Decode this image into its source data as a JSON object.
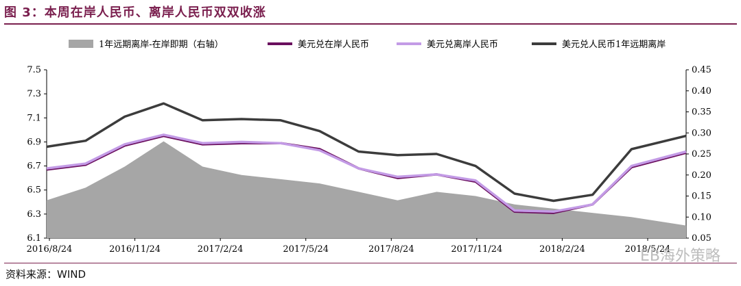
{
  "figure": {
    "title": "图 3：本周在岸人民币、离岸人民币双双收涨",
    "source": "资料来源：WIND",
    "watermark": "EB海外策略"
  },
  "colors": {
    "title": "#7a1f4e",
    "spread_area": "#a6a6a6",
    "onshore": "#6a0f5e",
    "offshore": "#c39be6",
    "forward": "#3c3c3c"
  },
  "chart_data": {
    "type": "line",
    "x_tick_labels": [
      "2016/8/24",
      "2016/11/24",
      "2017/2/24",
      "2017/5/24",
      "2017/8/24",
      "2017/11/24",
      "2018/2/24",
      "2018/5/24"
    ],
    "y_left": {
      "range": [
        6.1,
        7.5
      ],
      "ticks": [
        "6.1",
        "6.3",
        "6.5",
        "6.7",
        "6.9",
        "7.1",
        "7.3",
        "7.5"
      ]
    },
    "y_right": {
      "range": [
        0.05,
        0.45
      ],
      "ticks": [
        "0.05",
        "0.10",
        "0.15",
        "0.20",
        "0.25",
        "0.30",
        "0.35",
        "0.40",
        "0.45"
      ]
    },
    "legend": [
      "1年远期离岸-在岸即期（右轴）",
      "美元兑在岸人民币",
      "美元兑离岸人民币",
      "美元兑人民币1年远期离岸"
    ],
    "x": [
      0,
      0.5,
      1,
      1.5,
      2,
      2.5,
      3,
      3.5,
      4,
      4.5,
      5,
      5.5,
      6,
      6.5,
      7,
      7.5,
      8.2
    ],
    "series": [
      {
        "name": "1年远期离岸-在岸即期（右轴）",
        "axis": "right",
        "kind": "area",
        "values": [
          0.14,
          0.17,
          0.22,
          0.28,
          0.22,
          0.2,
          0.19,
          0.18,
          0.16,
          0.14,
          0.16,
          0.15,
          0.13,
          0.12,
          0.11,
          0.1,
          0.08
        ]
      },
      {
        "name": "美元兑在岸人民币",
        "axis": "left",
        "kind": "line",
        "values": [
          6.67,
          6.71,
          6.87,
          6.95,
          6.88,
          6.89,
          6.89,
          6.84,
          6.68,
          6.6,
          6.63,
          6.57,
          6.32,
          6.31,
          6.38,
          6.69,
          6.81
        ]
      },
      {
        "name": "美元兑离岸人民币",
        "axis": "left",
        "kind": "line",
        "values": [
          6.68,
          6.72,
          6.88,
          6.96,
          6.89,
          6.9,
          6.89,
          6.83,
          6.68,
          6.61,
          6.63,
          6.58,
          6.33,
          6.32,
          6.38,
          6.7,
          6.82
        ]
      },
      {
        "name": "美元兑人民币1年远期离岸",
        "axis": "left",
        "kind": "line",
        "values": [
          6.86,
          6.91,
          7.11,
          7.22,
          7.08,
          7.09,
          7.08,
          6.99,
          6.82,
          6.79,
          6.8,
          6.7,
          6.47,
          6.41,
          6.46,
          6.84,
          6.95
        ]
      }
    ]
  }
}
